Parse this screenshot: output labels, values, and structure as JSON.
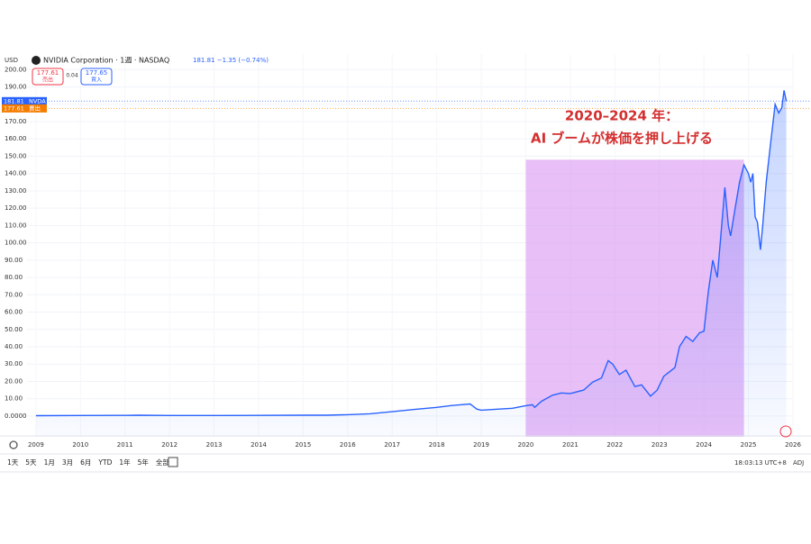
{
  "header": {
    "currency": "USD",
    "symbol": "NVIDIA Corporation · 1週 · NASDAQ",
    "quote": "181.81 −1.35 (−0.74%)",
    "sell_price": "177.61",
    "sell_label": "売出",
    "spread": "0.04",
    "buy_price": "177.65",
    "buy_label": "買入"
  },
  "toolbar": {
    "ranges": [
      "1天",
      "5天",
      "1月",
      "3月",
      "6月",
      "YTD",
      "1年",
      "5年",
      "全部"
    ],
    "time": "18:03:13 UTC+8",
    "adj": "ADJ"
  },
  "chart_data": {
    "type": "area",
    "color": "#2962ff",
    "annotation": [
      "2020–2024 年：",
      "AI ブームが株価を押し上げる"
    ],
    "highlight": {
      "xlim": [
        2020.0,
        2024.9
      ],
      "ytop": 148,
      "color": "#d58cf0"
    },
    "price_tags": [
      {
        "value": 181.81,
        "label": "181.81",
        "tag": "NVDA",
        "color": "#2962ff"
      },
      {
        "value": 177.61,
        "label": "177.61",
        "tag": "賣出",
        "color": "#f57c00"
      }
    ],
    "x": [
      2009.0,
      2010.0,
      2011.0,
      2011.3,
      2012.0,
      2013.0,
      2014.0,
      2015.0,
      2015.5,
      2016.0,
      2016.5,
      2017.0,
      2017.5,
      2018.0,
      2018.3,
      2018.75,
      2018.9,
      2019.0,
      2019.4,
      2019.7,
      2020.0,
      2020.15,
      2020.2,
      2020.35,
      2020.6,
      2020.8,
      2021.0,
      2021.3,
      2021.5,
      2021.7,
      2021.85,
      2021.95,
      2022.1,
      2022.25,
      2022.45,
      2022.6,
      2022.8,
      2022.95,
      2023.1,
      2023.35,
      2023.45,
      2023.6,
      2023.75,
      2023.9,
      2024.0,
      2024.1,
      2024.2,
      2024.3,
      2024.4,
      2024.47,
      2024.55,
      2024.6,
      2024.7,
      2024.8,
      2024.9,
      2025.0,
      2025.05,
      2025.1,
      2025.15,
      2025.2,
      2025.27,
      2025.32,
      2025.4,
      2025.5,
      2025.6,
      2025.68,
      2025.75,
      2025.8,
      2025.85
    ],
    "values": [
      0.2,
      0.3,
      0.4,
      0.5,
      0.32,
      0.31,
      0.4,
      0.5,
      0.5,
      0.8,
      1.3,
      2.5,
      3.8,
      5.0,
      6.0,
      7.0,
      4.0,
      3.4,
      4.0,
      4.5,
      6.0,
      6.5,
      5.0,
      8.5,
      12,
      13.3,
      13.0,
      15,
      19.5,
      22,
      32,
      30,
      24,
      26.5,
      17,
      18,
      11.5,
      15,
      23,
      28,
      40,
      46,
      43,
      48,
      49,
      72,
      90,
      80,
      110,
      132,
      110,
      104,
      120,
      135,
      145,
      140,
      135,
      140,
      115,
      112,
      96,
      110,
      135,
      158,
      180,
      175,
      178,
      188,
      181.81
    ],
    "xlim": [
      2008.8,
      2026.0
    ],
    "ylim": [
      -12,
      209
    ],
    "xticks": [
      2009,
      2010,
      2011,
      2012,
      2013,
      2014,
      2015,
      2016,
      2017,
      2018,
      2019,
      2020,
      2021,
      2022,
      2023,
      2024,
      2025,
      2026
    ],
    "yticks": [
      {
        "value": 0,
        "label": "0.0000"
      },
      {
        "value": 10,
        "label": "10.00"
      },
      {
        "value": 20,
        "label": "20.00"
      },
      {
        "value": 30,
        "label": "30.00"
      },
      {
        "value": 40,
        "label": "40.00"
      },
      {
        "value": 50,
        "label": "50.00"
      },
      {
        "value": 60,
        "label": "60.00"
      },
      {
        "value": 70,
        "label": "70.00"
      },
      {
        "value": 80,
        "label": "80.00"
      },
      {
        "value": 90,
        "label": "90.00"
      },
      {
        "value": 100,
        "label": "100.00"
      },
      {
        "value": 110,
        "label": "110.00"
      },
      {
        "value": 120,
        "label": "120.00"
      },
      {
        "value": 130,
        "label": "130.00"
      },
      {
        "value": 140,
        "label": "140.00"
      },
      {
        "value": 150,
        "label": "150.00"
      },
      {
        "value": 160,
        "label": "160.00"
      },
      {
        "value": 170,
        "label": "170.00"
      },
      {
        "value": 180,
        "label": "180.00"
      },
      {
        "value": 190,
        "label": "190.00"
      },
      {
        "value": 200,
        "label": "200.00"
      }
    ],
    "grid": true
  }
}
